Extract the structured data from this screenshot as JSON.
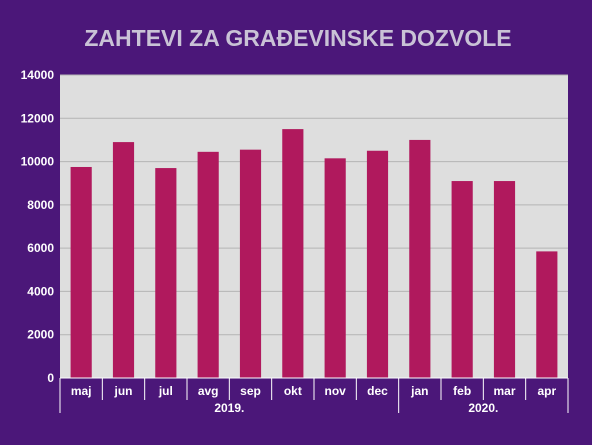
{
  "colors": {
    "background": "#4b1779",
    "plot_area": "#dedede",
    "bar": "#b0195d",
    "gridline": "#b4b4b4",
    "text": "#ffffff",
    "title": "#c9c2d6"
  },
  "chart_data": {
    "type": "bar",
    "title": "ZAHTEVI ZA GRAĐEVINSKE DOZVOLE",
    "xlabel": "",
    "ylabel": "",
    "categories": [
      "maj",
      "jun",
      "jul",
      "avg",
      "sep",
      "okt",
      "nov",
      "dec",
      "jan",
      "feb",
      "mar",
      "apr"
    ],
    "groups": [
      {
        "label": "2019.",
        "categories": [
          "maj",
          "jun",
          "jul",
          "avg",
          "sep",
          "okt",
          "nov",
          "dec"
        ]
      },
      {
        "label": "2020.",
        "categories": [
          "jan",
          "feb",
          "mar",
          "apr"
        ]
      }
    ],
    "values": [
      9750,
      10900,
      9700,
      10450,
      10550,
      11500,
      10150,
      10500,
      11000,
      9100,
      9100,
      5850
    ],
    "ylim": [
      0,
      14000
    ],
    "yticks": [
      "0",
      "2000",
      "4000",
      "6000",
      "8000",
      "10000",
      "12000",
      "14000"
    ],
    "grid": true,
    "legend": "none"
  }
}
